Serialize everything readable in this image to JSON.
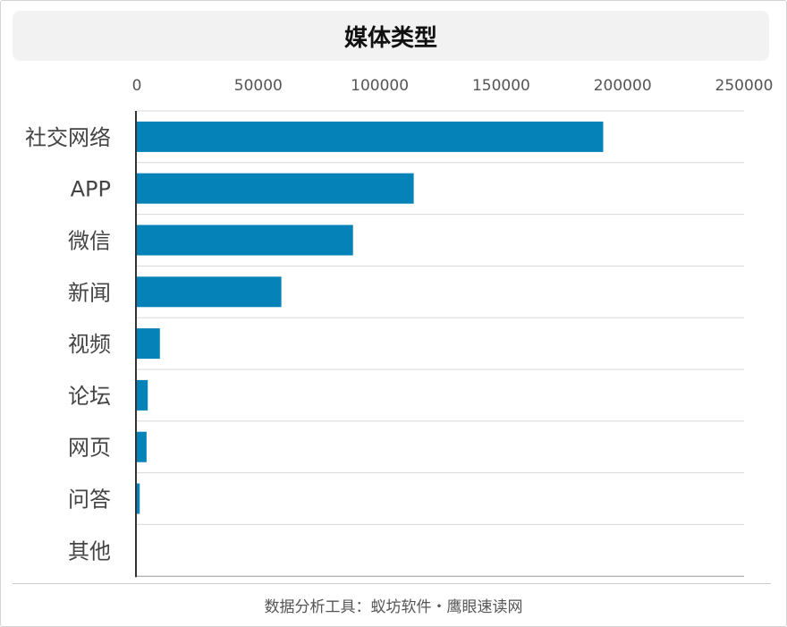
{
  "chart_data": {
    "type": "bar",
    "orientation": "horizontal",
    "title": "媒体类型",
    "categories": [
      "社交网络",
      "APP",
      "微信",
      "新闻",
      "视频",
      "论坛",
      "网页",
      "问答",
      "其他"
    ],
    "values": [
      192000,
      114000,
      89000,
      59500,
      9500,
      4500,
      4000,
      1200,
      0
    ],
    "xlim": [
      0,
      250000
    ],
    "ticks": [
      "0",
      "50000",
      "100000",
      "150000",
      "200000",
      "250000"
    ],
    "xlabel": "",
    "ylabel": "",
    "grid": true,
    "bar_color": "#0582b8"
  },
  "footer": {
    "source": "数据分析工具：蚁坊软件・鹰眼速读网"
  }
}
